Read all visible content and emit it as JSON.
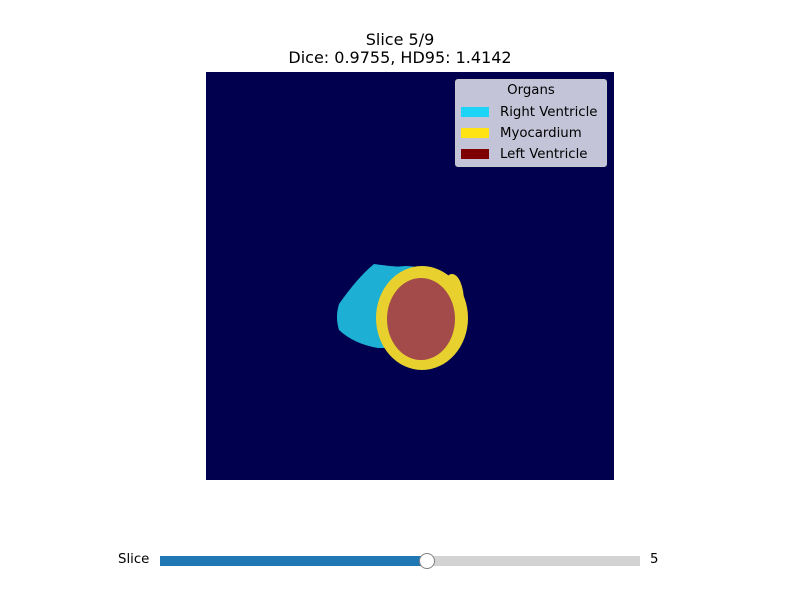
{
  "title": {
    "line1": "Slice 5/9",
    "line2": "Dice: 0.9755, HD95: 1.4142"
  },
  "image": {
    "background_color": "#00004f"
  },
  "legend": {
    "title": "Organs",
    "entries": [
      {
        "label": "Right Ventricle",
        "color": "#1ed4f6",
        "overlay_color": "#1dafd4"
      },
      {
        "label": "Myocardium",
        "color": "#ffe312",
        "overlay_color": "#e8d02f"
      },
      {
        "label": "Left Ventricle",
        "color": "#7f0000",
        "overlay_color": "#a34a4a"
      }
    ]
  },
  "slider": {
    "label": "Slice",
    "value": 5,
    "min": 1,
    "max": 9,
    "value_text": "5",
    "fill_color": "#1f77b4",
    "track_color": "#d3d3d3"
  }
}
